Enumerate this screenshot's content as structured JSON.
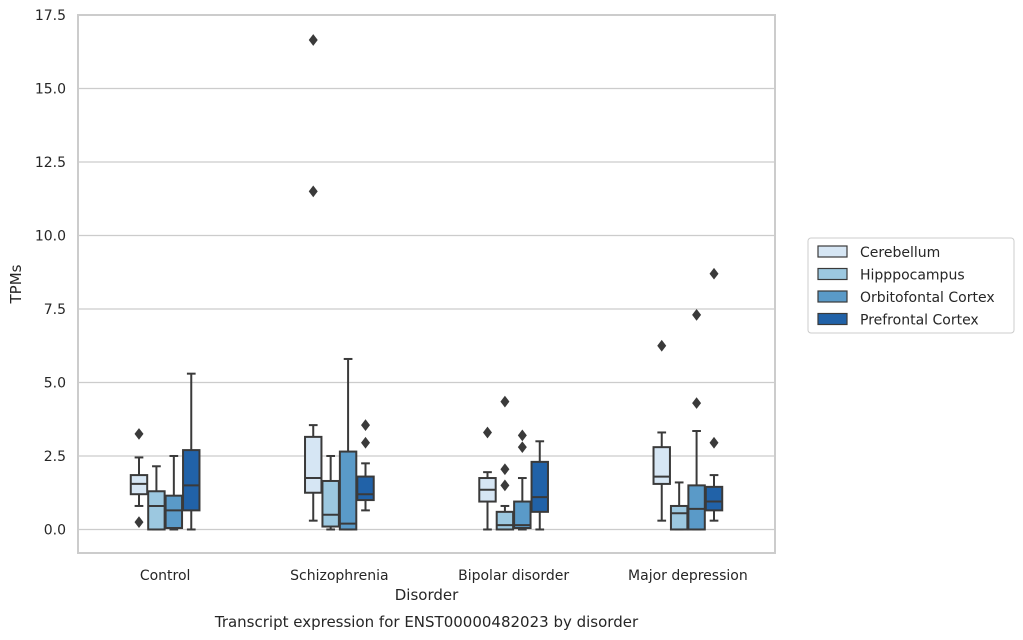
{
  "chart_data": {
    "type": "boxplot",
    "xlabel": "Disorder",
    "ylabel": "TPMs",
    "caption": "Transcript expression for ENST00000482023 by disorder",
    "ylim": [
      -0.8,
      17.5
    ],
    "yticks": [
      "0.0",
      "2.5",
      "5.0",
      "7.5",
      "10.0",
      "12.5",
      "15.0",
      "17.5"
    ],
    "ytick_values": [
      0,
      2.5,
      5,
      7.5,
      10,
      12.5,
      15,
      17.5
    ],
    "grid": "horizontal",
    "legend_position": "right",
    "categories": [
      "Control",
      "Schizophrenia",
      "Bipolar disorder",
      "Major depression"
    ],
    "series": [
      {
        "name": "Cerebellum",
        "color": "#d6e6f4",
        "boxes": [
          {
            "whislo": 0.8,
            "q1": 1.2,
            "med": 1.55,
            "q3": 1.85,
            "whishi": 2.45,
            "fliers": [
              3.25,
              0.25
            ]
          },
          {
            "whislo": 0.3,
            "q1": 1.25,
            "med": 1.75,
            "q3": 3.15,
            "whishi": 3.55,
            "fliers": [
              16.65,
              11.5
            ]
          },
          {
            "whislo": 0.0,
            "q1": 0.95,
            "med": 1.35,
            "q3": 1.75,
            "whishi": 1.95,
            "fliers": [
              3.3
            ]
          },
          {
            "whislo": 0.3,
            "q1": 1.55,
            "med": 1.8,
            "q3": 2.8,
            "whishi": 3.3,
            "fliers": [
              6.25
            ]
          }
        ]
      },
      {
        "name": "Hipppocampus",
        "color": "#9cc8e0",
        "boxes": [
          {
            "whislo": 0.0,
            "q1": 0.0,
            "med": 0.8,
            "q3": 1.3,
            "whishi": 2.15,
            "fliers": []
          },
          {
            "whislo": 0.0,
            "q1": 0.1,
            "med": 0.5,
            "q3": 1.65,
            "whishi": 2.5,
            "fliers": []
          },
          {
            "whislo": 0.0,
            "q1": 0.0,
            "med": 0.15,
            "q3": 0.6,
            "whishi": 0.8,
            "fliers": [
              4.35,
              2.05,
              1.5
            ]
          },
          {
            "whislo": 0.0,
            "q1": 0.0,
            "med": 0.55,
            "q3": 0.8,
            "whishi": 1.6,
            "fliers": []
          }
        ]
      },
      {
        "name": "Orbitofontal Cortex",
        "color": "#5a9ac8",
        "boxes": [
          {
            "whislo": 0.0,
            "q1": 0.05,
            "med": 0.65,
            "q3": 1.15,
            "whishi": 2.5,
            "fliers": []
          },
          {
            "whislo": 0.0,
            "q1": 0.0,
            "med": 0.2,
            "q3": 2.65,
            "whishi": 5.8,
            "fliers": []
          },
          {
            "whislo": 0.0,
            "q1": 0.05,
            "med": 0.15,
            "q3": 0.95,
            "whishi": 1.75,
            "fliers": [
              3.2,
              2.8
            ]
          },
          {
            "whislo": 0.0,
            "q1": 0.0,
            "med": 0.7,
            "q3": 1.5,
            "whishi": 3.35,
            "fliers": [
              7.3,
              4.3
            ]
          }
        ]
      },
      {
        "name": "Prefrontal Cortex",
        "color": "#2162a8",
        "boxes": [
          {
            "whislo": 0.0,
            "q1": 0.65,
            "med": 1.5,
            "q3": 2.7,
            "whishi": 5.3,
            "fliers": []
          },
          {
            "whislo": 0.65,
            "q1": 1.0,
            "med": 1.2,
            "q3": 1.8,
            "whishi": 2.25,
            "fliers": [
              3.55,
              2.95
            ]
          },
          {
            "whislo": 0.0,
            "q1": 0.6,
            "med": 1.1,
            "q3": 2.3,
            "whishi": 3.0,
            "fliers": []
          },
          {
            "whislo": 0.3,
            "q1": 0.65,
            "med": 0.95,
            "q3": 1.45,
            "whishi": 1.85,
            "fliers": [
              8.7,
              2.95
            ]
          }
        ]
      }
    ]
  }
}
